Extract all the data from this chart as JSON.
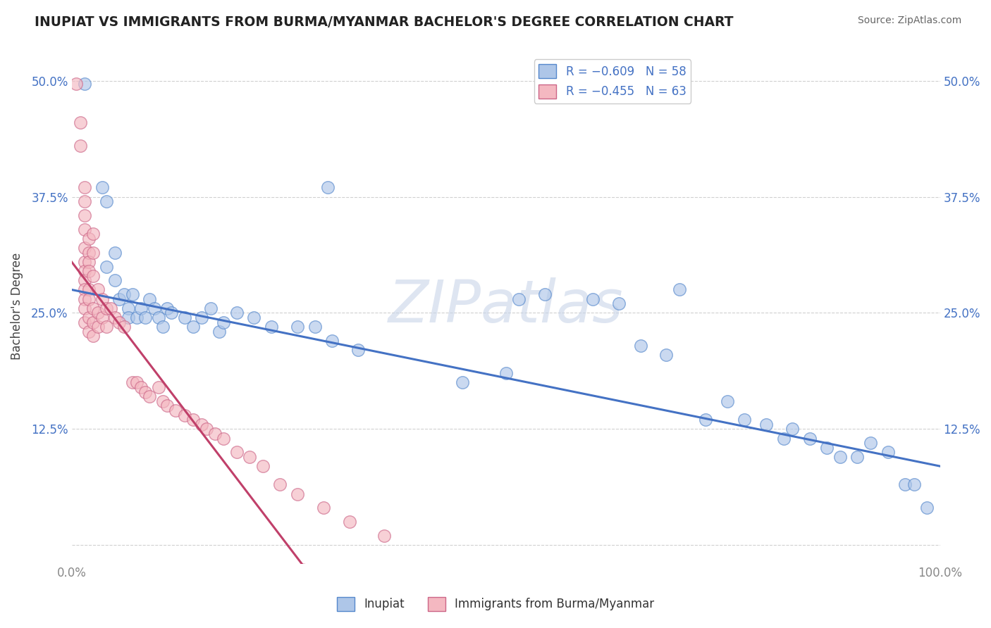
{
  "title": "INUPIAT VS IMMIGRANTS FROM BURMA/MYANMAR BACHELOR'S DEGREE CORRELATION CHART",
  "source": "Source: ZipAtlas.com",
  "ylabel": "Bachelor's Degree",
  "watermark": "ZIPatlas",
  "xlim": [
    0.0,
    1.0
  ],
  "ylim": [
    -0.02,
    0.535
  ],
  "xticks": [
    0.0,
    1.0
  ],
  "xtick_labels": [
    "0.0%",
    "100.0%"
  ],
  "yticks": [
    0.0,
    0.125,
    0.25,
    0.375,
    0.5
  ],
  "ytick_labels_left": [
    "",
    "12.5%",
    "25.0%",
    "37.5%",
    "50.0%"
  ],
  "ytick_labels_right": [
    "",
    "12.5%",
    "25.0%",
    "37.5%",
    "50.0%"
  ],
  "blue_line": {
    "x0": 0.0,
    "y0": 0.275,
    "x1": 1.0,
    "y1": 0.085
  },
  "pink_line": {
    "x0": 0.0,
    "y0": 0.305,
    "x1": 0.265,
    "y1": -0.02
  },
  "blue_scatter": [
    [
      0.015,
      0.497
    ],
    [
      0.035,
      0.385
    ],
    [
      0.04,
      0.37
    ],
    [
      0.05,
      0.315
    ],
    [
      0.04,
      0.3
    ],
    [
      0.05,
      0.285
    ],
    [
      0.055,
      0.265
    ],
    [
      0.06,
      0.27
    ],
    [
      0.065,
      0.255
    ],
    [
      0.065,
      0.245
    ],
    [
      0.07,
      0.27
    ],
    [
      0.075,
      0.245
    ],
    [
      0.08,
      0.255
    ],
    [
      0.085,
      0.245
    ],
    [
      0.09,
      0.265
    ],
    [
      0.095,
      0.255
    ],
    [
      0.1,
      0.245
    ],
    [
      0.105,
      0.235
    ],
    [
      0.11,
      0.255
    ],
    [
      0.115,
      0.25
    ],
    [
      0.13,
      0.245
    ],
    [
      0.14,
      0.235
    ],
    [
      0.15,
      0.245
    ],
    [
      0.16,
      0.255
    ],
    [
      0.17,
      0.23
    ],
    [
      0.175,
      0.24
    ],
    [
      0.19,
      0.25
    ],
    [
      0.21,
      0.245
    ],
    [
      0.23,
      0.235
    ],
    [
      0.26,
      0.235
    ],
    [
      0.28,
      0.235
    ],
    [
      0.3,
      0.22
    ],
    [
      0.33,
      0.21
    ],
    [
      0.295,
      0.385
    ],
    [
      0.45,
      0.175
    ],
    [
      0.5,
      0.185
    ],
    [
      0.515,
      0.265
    ],
    [
      0.545,
      0.27
    ],
    [
      0.6,
      0.265
    ],
    [
      0.63,
      0.26
    ],
    [
      0.655,
      0.215
    ],
    [
      0.685,
      0.205
    ],
    [
      0.7,
      0.275
    ],
    [
      0.73,
      0.135
    ],
    [
      0.755,
      0.155
    ],
    [
      0.775,
      0.135
    ],
    [
      0.8,
      0.13
    ],
    [
      0.82,
      0.115
    ],
    [
      0.83,
      0.125
    ],
    [
      0.85,
      0.115
    ],
    [
      0.87,
      0.105
    ],
    [
      0.885,
      0.095
    ],
    [
      0.905,
      0.095
    ],
    [
      0.92,
      0.11
    ],
    [
      0.94,
      0.1
    ],
    [
      0.96,
      0.065
    ],
    [
      0.97,
      0.065
    ],
    [
      0.985,
      0.04
    ]
  ],
  "pink_scatter": [
    [
      0.005,
      0.497
    ],
    [
      0.01,
      0.455
    ],
    [
      0.01,
      0.43
    ],
    [
      0.015,
      0.385
    ],
    [
      0.015,
      0.37
    ],
    [
      0.015,
      0.355
    ],
    [
      0.015,
      0.34
    ],
    [
      0.015,
      0.32
    ],
    [
      0.015,
      0.305
    ],
    [
      0.015,
      0.295
    ],
    [
      0.015,
      0.285
    ],
    [
      0.015,
      0.275
    ],
    [
      0.015,
      0.265
    ],
    [
      0.015,
      0.255
    ],
    [
      0.015,
      0.24
    ],
    [
      0.02,
      0.33
    ],
    [
      0.02,
      0.315
    ],
    [
      0.02,
      0.305
    ],
    [
      0.02,
      0.295
    ],
    [
      0.02,
      0.275
    ],
    [
      0.02,
      0.265
    ],
    [
      0.02,
      0.245
    ],
    [
      0.02,
      0.23
    ],
    [
      0.025,
      0.335
    ],
    [
      0.025,
      0.315
    ],
    [
      0.025,
      0.29
    ],
    [
      0.025,
      0.255
    ],
    [
      0.025,
      0.24
    ],
    [
      0.025,
      0.225
    ],
    [
      0.03,
      0.275
    ],
    [
      0.03,
      0.25
    ],
    [
      0.03,
      0.235
    ],
    [
      0.035,
      0.265
    ],
    [
      0.035,
      0.245
    ],
    [
      0.04,
      0.255
    ],
    [
      0.04,
      0.235
    ],
    [
      0.045,
      0.255
    ],
    [
      0.05,
      0.245
    ],
    [
      0.055,
      0.24
    ],
    [
      0.06,
      0.235
    ],
    [
      0.07,
      0.175
    ],
    [
      0.075,
      0.175
    ],
    [
      0.08,
      0.17
    ],
    [
      0.085,
      0.165
    ],
    [
      0.09,
      0.16
    ],
    [
      0.1,
      0.17
    ],
    [
      0.105,
      0.155
    ],
    [
      0.11,
      0.15
    ],
    [
      0.12,
      0.145
    ],
    [
      0.13,
      0.14
    ],
    [
      0.14,
      0.135
    ],
    [
      0.15,
      0.13
    ],
    [
      0.155,
      0.125
    ],
    [
      0.165,
      0.12
    ],
    [
      0.175,
      0.115
    ],
    [
      0.19,
      0.1
    ],
    [
      0.205,
      0.095
    ],
    [
      0.22,
      0.085
    ],
    [
      0.24,
      0.065
    ],
    [
      0.26,
      0.055
    ],
    [
      0.29,
      0.04
    ],
    [
      0.32,
      0.025
    ],
    [
      0.36,
      0.01
    ]
  ],
  "title_color": "#222222",
  "source_color": "#666666",
  "axis_color": "#888888",
  "grid_color": "#d0d0d0",
  "blue_scatter_color": "#aec6e8",
  "pink_scatter_color": "#f4b8c1",
  "blue_edge_color": "#5588cc",
  "pink_edge_color": "#cc6688",
  "blue_line_color": "#4472c4",
  "pink_line_color": "#c0406a",
  "watermark_color": "#c8d4e8",
  "legend_text_color": "#4472c4"
}
